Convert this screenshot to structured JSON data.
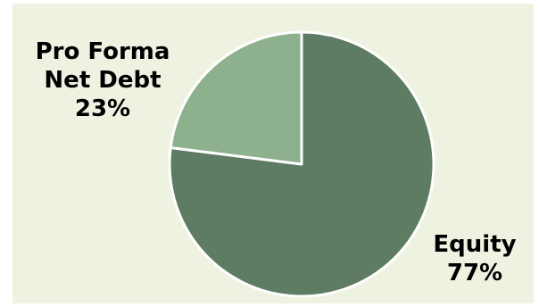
{
  "chart_data": {
    "type": "pie",
    "title": "",
    "slices": [
      {
        "name_lines": [
          "Equity"
        ],
        "value": 77,
        "value_label": "77%",
        "color": "#5d7c63"
      },
      {
        "name_lines": [
          "Pro Forma",
          "Net Debt"
        ],
        "value": 23,
        "value_label": "23%",
        "color": "#8db18d"
      }
    ],
    "start_angle_deg": 0,
    "direction": "clockwise-from-top",
    "separator_color": "#ffffff",
    "background_color": "#eef2e1",
    "legend": "none"
  }
}
